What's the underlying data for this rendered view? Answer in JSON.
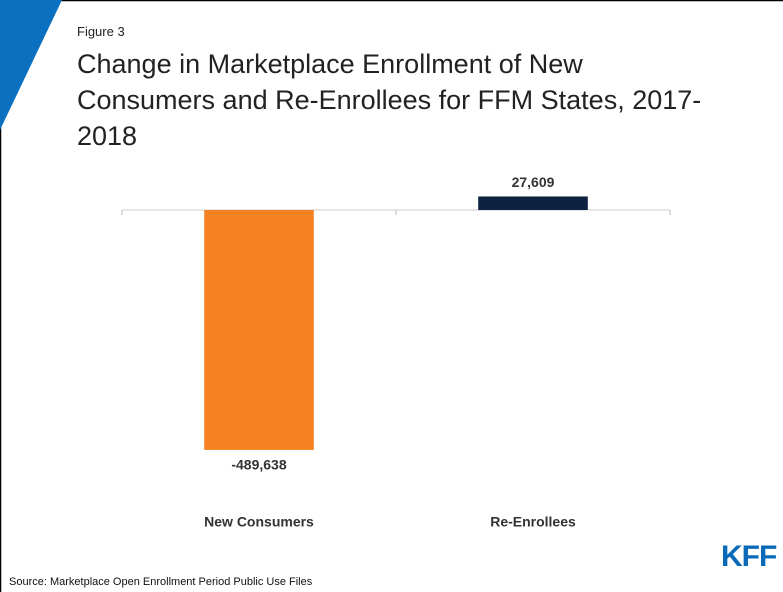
{
  "chart_data": {
    "type": "bar",
    "figure_label": "Figure 3",
    "title": "Change in Marketplace Enrollment of New Consumers and Re-Enrollees for FFM States, 2017-2018",
    "categories": [
      "New Consumers",
      "Re-Enrollees"
    ],
    "values": [
      -489638,
      27609
    ],
    "value_labels": [
      "-489,638",
      "27,609"
    ],
    "colors": [
      "#f58220",
      "#0d2240"
    ],
    "ylim": [
      -500000,
      50000
    ],
    "source": "Source: Marketplace Open Enrollment Period Public Use Files",
    "logo": "KFF"
  }
}
